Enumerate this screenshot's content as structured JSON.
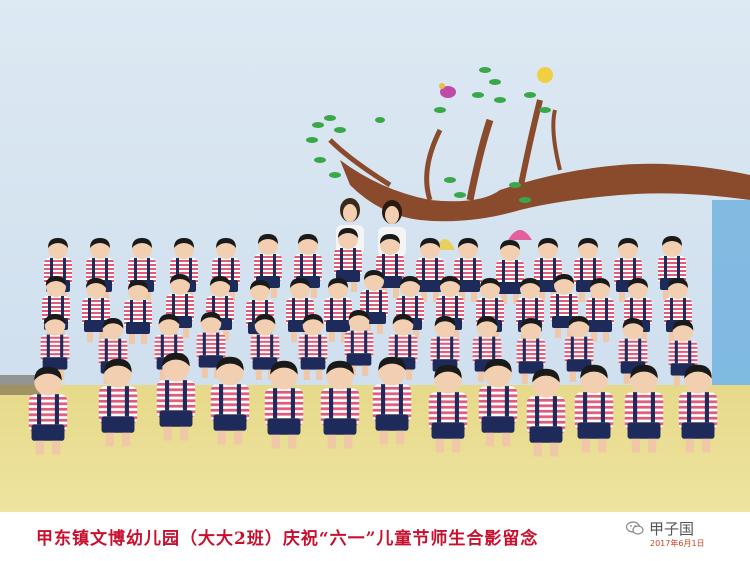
{
  "photo": {
    "colors": {
      "wall": "#d8e6f1",
      "floor": "#e9dc8e",
      "branch": "#8a4a2c",
      "leaf": "#3aa84a",
      "shirt_stripe": "#e05a7a",
      "shorts": "#1e2a5a"
    }
  },
  "caption": {
    "text": "甲东镇文博幼儿园（大大2班）庆祝“六一”儿童节师生合影留念",
    "color": "#c8102e"
  },
  "watermark": {
    "text": "甲子国",
    "icon": "wechat-icon"
  },
  "date": {
    "text": "2017年6月1日"
  }
}
